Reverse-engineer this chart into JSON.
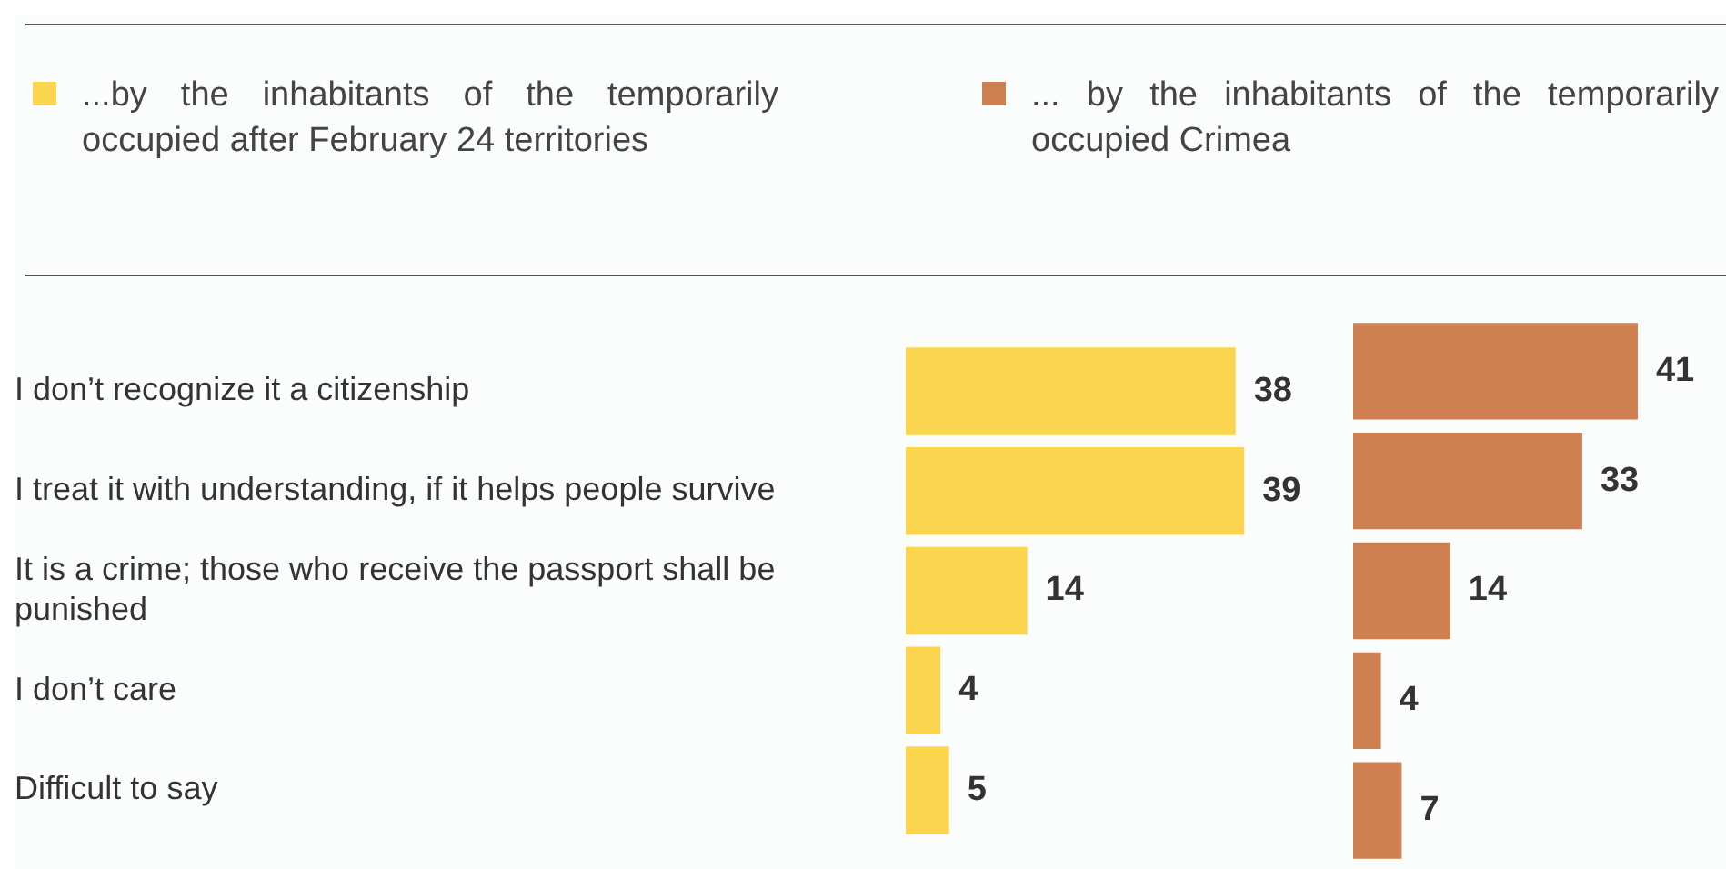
{
  "chart_data": [
    {
      "type": "bar",
      "orientation": "horizontal",
      "categories": [
        "I don’t recognize it a citizenship",
        "I treat it with understanding, if it helps people survive",
        "It is a crime; those who receive the passport shall be punished",
        "I don’t care",
        "Difficult to say"
      ],
      "series": [
        {
          "name": "...by the inhabitants of the temporarily occupied after February 24 territories",
          "color": "#fad54d",
          "values": [
            38,
            39,
            14,
            4,
            5
          ]
        }
      ],
      "data_labels": true,
      "grid": false,
      "legend": "top left",
      "tick_labels": "y"
    },
    {
      "type": "bar",
      "orientation": "horizontal",
      "categories": [
        null,
        null,
        null,
        null,
        null
      ],
      "series": [
        {
          "name": "... by the inhabitants of the temporarily occupied Crimea",
          "color": "#cf8050",
          "values": [
            41,
            33,
            14,
            4,
            7
          ]
        }
      ],
      "data_labels": true,
      "grid": false,
      "legend": "top left",
      "tick_labels": false
    }
  ]
}
